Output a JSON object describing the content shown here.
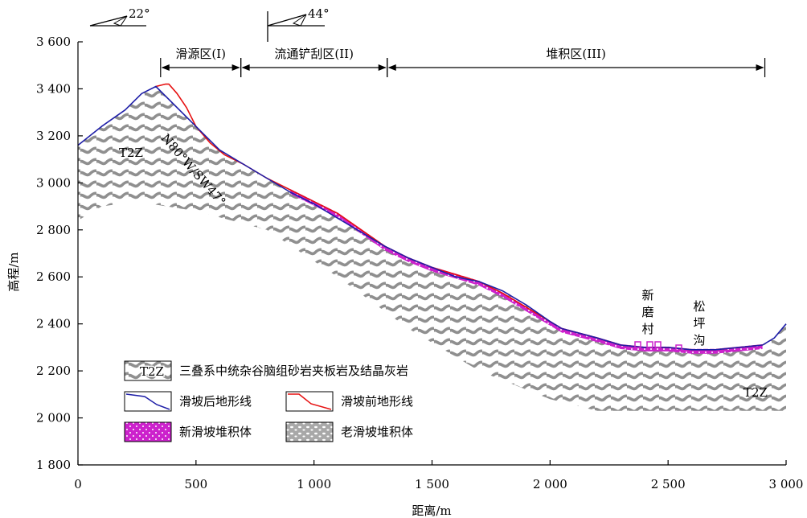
{
  "chart_data": {
    "type": "line",
    "title": "",
    "xlabel": "距离/m",
    "ylabel": "高程/m",
    "xlim": [
      0,
      3000
    ],
    "ylim": [
      1800,
      3600
    ],
    "x_ticks": [
      {
        "value": 0,
        "label": "0"
      },
      {
        "value": 500,
        "label": "500"
      },
      {
        "value": 1000,
        "label": "1 000"
      },
      {
        "value": 1500,
        "label": "1 500"
      },
      {
        "value": 2000,
        "label": "2 000"
      },
      {
        "value": 2500,
        "label": "2 500"
      },
      {
        "value": 3000,
        "label": "3 000"
      }
    ],
    "y_ticks": [
      {
        "value": 1800,
        "label": "1 800"
      },
      {
        "value": 2000,
        "label": "2 000"
      },
      {
        "value": 2200,
        "label": "2 200"
      },
      {
        "value": 2400,
        "label": "2 400"
      },
      {
        "value": 2600,
        "label": "2 600"
      },
      {
        "value": 2800,
        "label": "2 800"
      },
      {
        "value": 3000,
        "label": "3 000"
      },
      {
        "value": 3200,
        "label": "3 200"
      },
      {
        "value": 3400,
        "label": "3 400"
      },
      {
        "value": 3600,
        "label": "3 600"
      }
    ],
    "series": [
      {
        "name": "滑坡后地形线",
        "color": "#1f1fa8",
        "x": [
          0,
          100,
          200,
          270,
          330,
          400,
          500,
          600,
          700,
          800,
          900,
          1000,
          1100,
          1200,
          1300,
          1400,
          1500,
          1600,
          1700,
          1800,
          1900,
          2000,
          2050,
          2200,
          2300,
          2400,
          2500,
          2600,
          2700,
          2800,
          2900,
          2950,
          3000
        ],
        "y": [
          3160,
          3240,
          3310,
          3380,
          3410,
          3340,
          3240,
          3140,
          3080,
          3020,
          2960,
          2910,
          2850,
          2790,
          2730,
          2680,
          2640,
          2600,
          2580,
          2540,
          2480,
          2410,
          2380,
          2340,
          2310,
          2300,
          2300,
          2290,
          2290,
          2300,
          2310,
          2340,
          2400
        ]
      },
      {
        "name": "滑坡前地形线",
        "color": "#e61010",
        "x": [
          330,
          370,
          385,
          420,
          460,
          500,
          560,
          620,
          700,
          800,
          900,
          1000,
          1100,
          1200,
          1300,
          1400,
          1500,
          1600,
          1700,
          1800,
          1900,
          2000,
          2050,
          2200,
          2300,
          2400,
          2500,
          2600,
          2700,
          2800,
          2900
        ],
        "y": [
          3410,
          3420,
          3420,
          3380,
          3320,
          3240,
          3170,
          3120,
          3080,
          3020,
          2970,
          2920,
          2870,
          2800,
          2730,
          2680,
          2640,
          2610,
          2580,
          2530,
          2470,
          2410,
          2380,
          2340,
          2310,
          2300,
          2300,
          2290,
          2290,
          2300,
          2310
        ]
      }
    ],
    "zones": [
      {
        "label": "滑源区(I)",
        "x_start": 350,
        "x_end": 690
      },
      {
        "label": "流通铲刮区(II)",
        "x_start": 690,
        "x_end": 1310
      },
      {
        "label": "堆积区(III)",
        "x_start": 1310,
        "x_end": 2910
      }
    ],
    "annotations": {
      "dip_angle_1": "22°",
      "dip_angle_2": "44°",
      "strata_label_left": "T2Z",
      "strata_label_right": "T2Z",
      "attitude": "N80°W/SW47°",
      "village_1": "新磨村",
      "village_2": "松坪沟"
    },
    "legend": [
      {
        "label": "三叠系中统杂谷脑组砂岩夹板岩及结晶灰岩",
        "symbol": "T2Z"
      },
      {
        "label": "滑坡后地形线"
      },
      {
        "label": "滑坡前地形线"
      },
      {
        "label": "新滑坡堆积体"
      },
      {
        "label": "老滑坡堆积体"
      }
    ],
    "legend_placement": "bottom-left",
    "grid": false
  }
}
